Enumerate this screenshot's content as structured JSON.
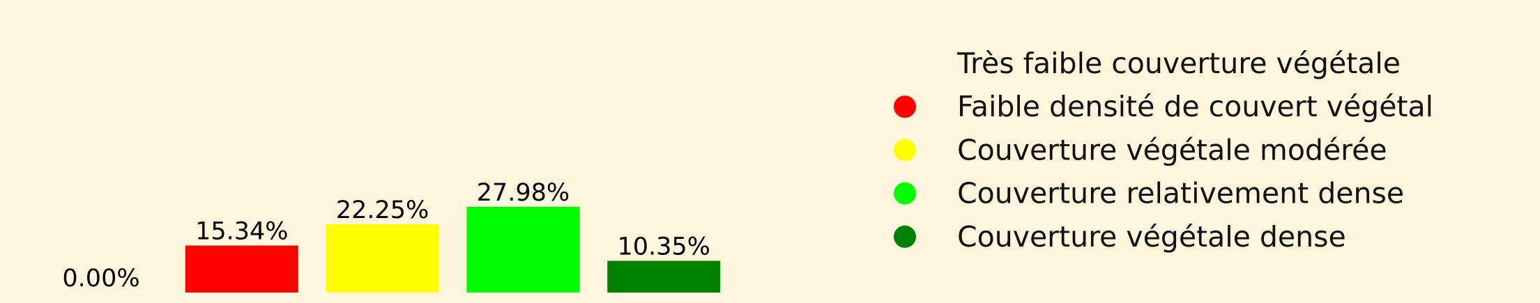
{
  "background": "#fdf6dc",
  "chart_data": {
    "type": "bar",
    "title": "",
    "xlabel": "",
    "ylabel": "",
    "ylim": [
      0,
      30
    ],
    "grid": false,
    "axes_visible": false,
    "legend_placement": "right",
    "categories": [
      "Très faible couverture végétale",
      "Faible densité de couvert végétal",
      "Couverture végétale modérée",
      "Couverture relativement dense",
      "Couverture végétale dense"
    ],
    "values": [
      0.0,
      15.34,
      22.25,
      27.98,
      10.35
    ],
    "value_labels": [
      "0.00%",
      "15.34%",
      "22.25%",
      "27.98%",
      "10.35%"
    ],
    "colors": [
      "#fdf6dc",
      "#ff0000",
      "#ffff00",
      "#00ff00",
      "#008000"
    ],
    "legend": [
      {
        "label": "Très faible couverture végétale",
        "color": "#fdf6dc"
      },
      {
        "label": "Faible densité de couvert végétal",
        "color": "#ff0000"
      },
      {
        "label": "Couverture végétale modérée",
        "color": "#ffff00"
      },
      {
        "label": "Couverture relativement dense",
        "color": "#00ff00"
      },
      {
        "label": "Couverture végétale dense",
        "color": "#008000"
      }
    ]
  }
}
